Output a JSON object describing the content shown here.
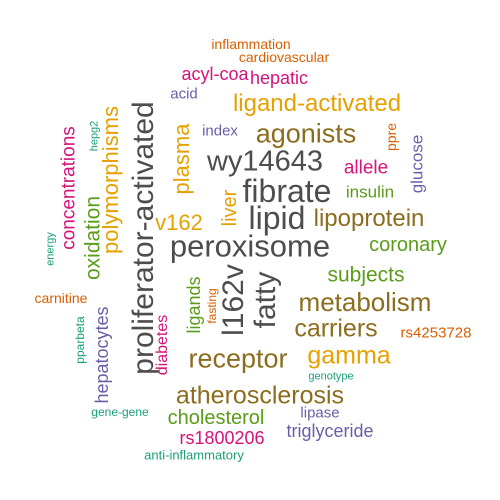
{
  "colors": {
    "dark": "#4d4d4d",
    "brown": "#8c6d1f",
    "gold": "#e6a100",
    "green": "#5a9c1a",
    "magenta": "#d4137b",
    "purple": "#6b5ea8",
    "orange": "#d95f02",
    "teal": "#1b9e77"
  },
  "words": [
    {
      "text": "proliferator-activated",
      "color": "#4d4d4d",
      "rotated": true
    },
    {
      "text": "peroxisome",
      "color": "#4d4d4d",
      "rotated": false
    },
    {
      "text": "fibrate",
      "color": "#4d4d4d",
      "rotated": false
    },
    {
      "text": "lipid",
      "color": "#4d4d4d",
      "rotated": false
    },
    {
      "text": "wy14643",
      "color": "#4d4d4d",
      "rotated": false
    },
    {
      "text": "l162v",
      "color": "#4d4d4d",
      "rotated": true
    },
    {
      "text": "fatty",
      "color": "#4d4d4d",
      "rotated": true
    },
    {
      "text": "metabolism",
      "color": "#8c6d1f",
      "rotated": false
    },
    {
      "text": "receptor",
      "color": "#8c6d1f",
      "rotated": false
    },
    {
      "text": "agonists",
      "color": "#8c6d1f",
      "rotated": false
    },
    {
      "text": "carriers",
      "color": "#8c6d1f",
      "rotated": false
    },
    {
      "text": "atherosclerosis",
      "color": "#8c6d1f",
      "rotated": false
    },
    {
      "text": "lipoprotein",
      "color": "#8c6d1f",
      "rotated": false
    },
    {
      "text": "ligand-activated",
      "color": "#e6a100",
      "rotated": false
    },
    {
      "text": "gamma",
      "color": "#e6a100",
      "rotated": false
    },
    {
      "text": "polymorphisms",
      "color": "#e6a100",
      "rotated": true
    },
    {
      "text": "plasma",
      "color": "#e6a100",
      "rotated": true
    },
    {
      "text": "v162",
      "color": "#e6a100",
      "rotated": false
    },
    {
      "text": "liver",
      "color": "#e6a100",
      "rotated": true
    },
    {
      "text": "subjects",
      "color": "#5a9c1a",
      "rotated": false
    },
    {
      "text": "coronary",
      "color": "#5a9c1a",
      "rotated": false
    },
    {
      "text": "insulin",
      "color": "#5a9c1a",
      "rotated": false
    },
    {
      "text": "oxidation",
      "color": "#5a9c1a",
      "rotated": true
    },
    {
      "text": "ligands",
      "color": "#5a9c1a",
      "rotated": true
    },
    {
      "text": "cholesterol",
      "color": "#5a9c1a",
      "rotated": false
    },
    {
      "text": "concentrations",
      "color": "#d4137b",
      "rotated": true
    },
    {
      "text": "acyl-coa",
      "color": "#d4137b",
      "rotated": false
    },
    {
      "text": "hepatic",
      "color": "#d4137b",
      "rotated": false
    },
    {
      "text": "allele",
      "color": "#d4137b",
      "rotated": false
    },
    {
      "text": "diabetes",
      "color": "#d4137b",
      "rotated": true
    },
    {
      "text": "rs1800206",
      "color": "#d4137b",
      "rotated": false
    },
    {
      "text": "acid",
      "color": "#6b5ea8",
      "rotated": false
    },
    {
      "text": "index",
      "color": "#6b5ea8",
      "rotated": false
    },
    {
      "text": "glucose",
      "color": "#6b5ea8",
      "rotated": true
    },
    {
      "text": "hepatocytes",
      "color": "#6b5ea8",
      "rotated": true
    },
    {
      "text": "lipase",
      "color": "#6b5ea8",
      "rotated": false
    },
    {
      "text": "triglyceride",
      "color": "#6b5ea8",
      "rotated": false
    },
    {
      "text": "inflammation",
      "color": "#d95f02",
      "rotated": false
    },
    {
      "text": "cardiovascular",
      "color": "#d95f02",
      "rotated": false
    },
    {
      "text": "ppre",
      "color": "#d95f02",
      "rotated": true
    },
    {
      "text": "carnitine",
      "color": "#d95f02",
      "rotated": false
    },
    {
      "text": "fasting",
      "color": "#d95f02",
      "rotated": true
    },
    {
      "text": "rs4253728",
      "color": "#d95f02",
      "rotated": false
    },
    {
      "text": "hepg2",
      "color": "#1b9e77",
      "rotated": true
    },
    {
      "text": "energy",
      "color": "#1b9e77",
      "rotated": true
    },
    {
      "text": "pparbeta",
      "color": "#1b9e77",
      "rotated": true
    },
    {
      "text": "genotype",
      "color": "#1b9e77",
      "rotated": false
    },
    {
      "text": "gene-gene",
      "color": "#1b9e77",
      "rotated": false
    },
    {
      "text": "anti-inflammatory",
      "color": "#1b9e77",
      "rotated": false
    }
  ]
}
